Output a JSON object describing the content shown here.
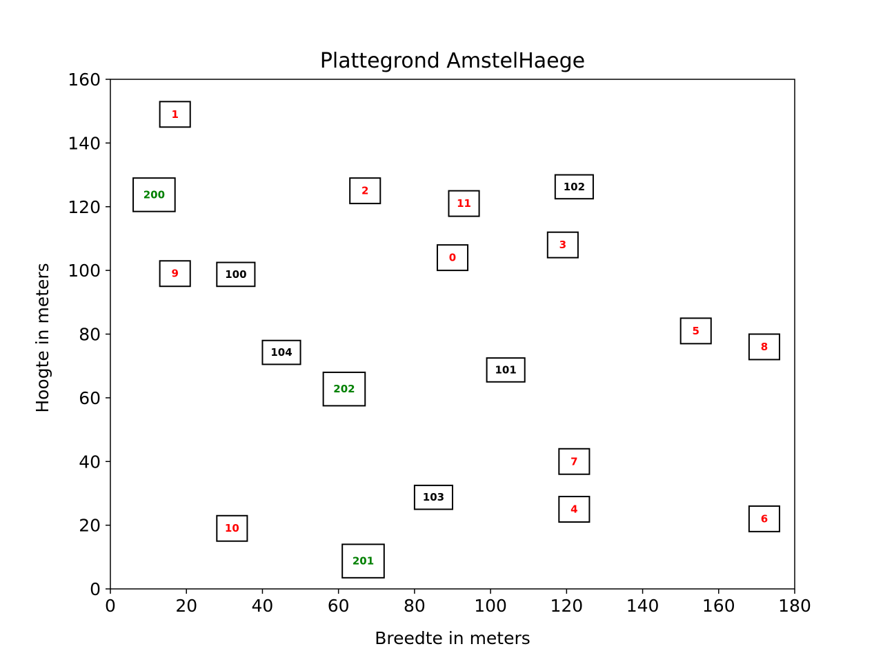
{
  "chart_data": {
    "type": "scatter",
    "title": "Plattegrond AmstelHaege",
    "xlabel": "Breedte in meters",
    "ylabel": "Hoogte in meters",
    "xlim": [
      0,
      180
    ],
    "ylim": [
      0,
      160
    ],
    "xticks": [
      0,
      20,
      40,
      60,
      80,
      100,
      120,
      140,
      160,
      180
    ],
    "yticks": [
      0,
      20,
      40,
      60,
      80,
      100,
      120,
      140,
      160
    ],
    "grid": false,
    "colors": {
      "red_group": "#ff0000",
      "black_group": "#000000",
      "green_group": "#008000"
    },
    "series": [
      {
        "color": "#ff0000",
        "points": [
          {
            "label": "0",
            "x0": 86,
            "x1": 94,
            "y0": 100,
            "y1": 108
          },
          {
            "label": "1",
            "x0": 13,
            "x1": 21,
            "y0": 145,
            "y1": 153
          },
          {
            "label": "2",
            "x0": 63,
            "x1": 71,
            "y0": 121,
            "y1": 129
          },
          {
            "label": "3",
            "x0": 115,
            "x1": 123,
            "y0": 104,
            "y1": 112
          },
          {
            "label": "4",
            "x0": 118,
            "x1": 126,
            "y0": 21,
            "y1": 29
          },
          {
            "label": "5",
            "x0": 150,
            "x1": 158,
            "y0": 77,
            "y1": 85
          },
          {
            "label": "6",
            "x0": 168,
            "x1": 176,
            "y0": 18,
            "y1": 26
          },
          {
            "label": "7",
            "x0": 118,
            "x1": 126,
            "y0": 36,
            "y1": 44
          },
          {
            "label": "8",
            "x0": 168,
            "x1": 176,
            "y0": 72,
            "y1": 80
          },
          {
            "label": "9",
            "x0": 13,
            "x1": 21,
            "y0": 95,
            "y1": 103
          },
          {
            "label": "10",
            "x0": 28,
            "x1": 36,
            "y0": 15,
            "y1": 23
          },
          {
            "label": "11",
            "x0": 89,
            "x1": 97,
            "y0": 117,
            "y1": 125
          }
        ]
      },
      {
        "color": "#000000",
        "points": [
          {
            "label": "100",
            "x0": 28,
            "x1": 38,
            "y0": 95,
            "y1": 102.5
          },
          {
            "label": "101",
            "x0": 99,
            "x1": 109,
            "y0": 65,
            "y1": 72.5
          },
          {
            "label": "102",
            "x0": 117,
            "x1": 127,
            "y0": 122.5,
            "y1": 130
          },
          {
            "label": "103",
            "x0": 80,
            "x1": 90,
            "y0": 25,
            "y1": 32.5
          },
          {
            "label": "104",
            "x0": 40,
            "x1": 50,
            "y0": 70.5,
            "y1": 78
          }
        ]
      },
      {
        "color": "#008000",
        "points": [
          {
            "label": "200",
            "x0": 6,
            "x1": 17,
            "y0": 118.5,
            "y1": 129
          },
          {
            "label": "201",
            "x0": 61,
            "x1": 72,
            "y0": 3.5,
            "y1": 14
          },
          {
            "label": "202",
            "x0": 56,
            "x1": 67,
            "y0": 57.5,
            "y1": 68
          }
        ]
      }
    ]
  }
}
